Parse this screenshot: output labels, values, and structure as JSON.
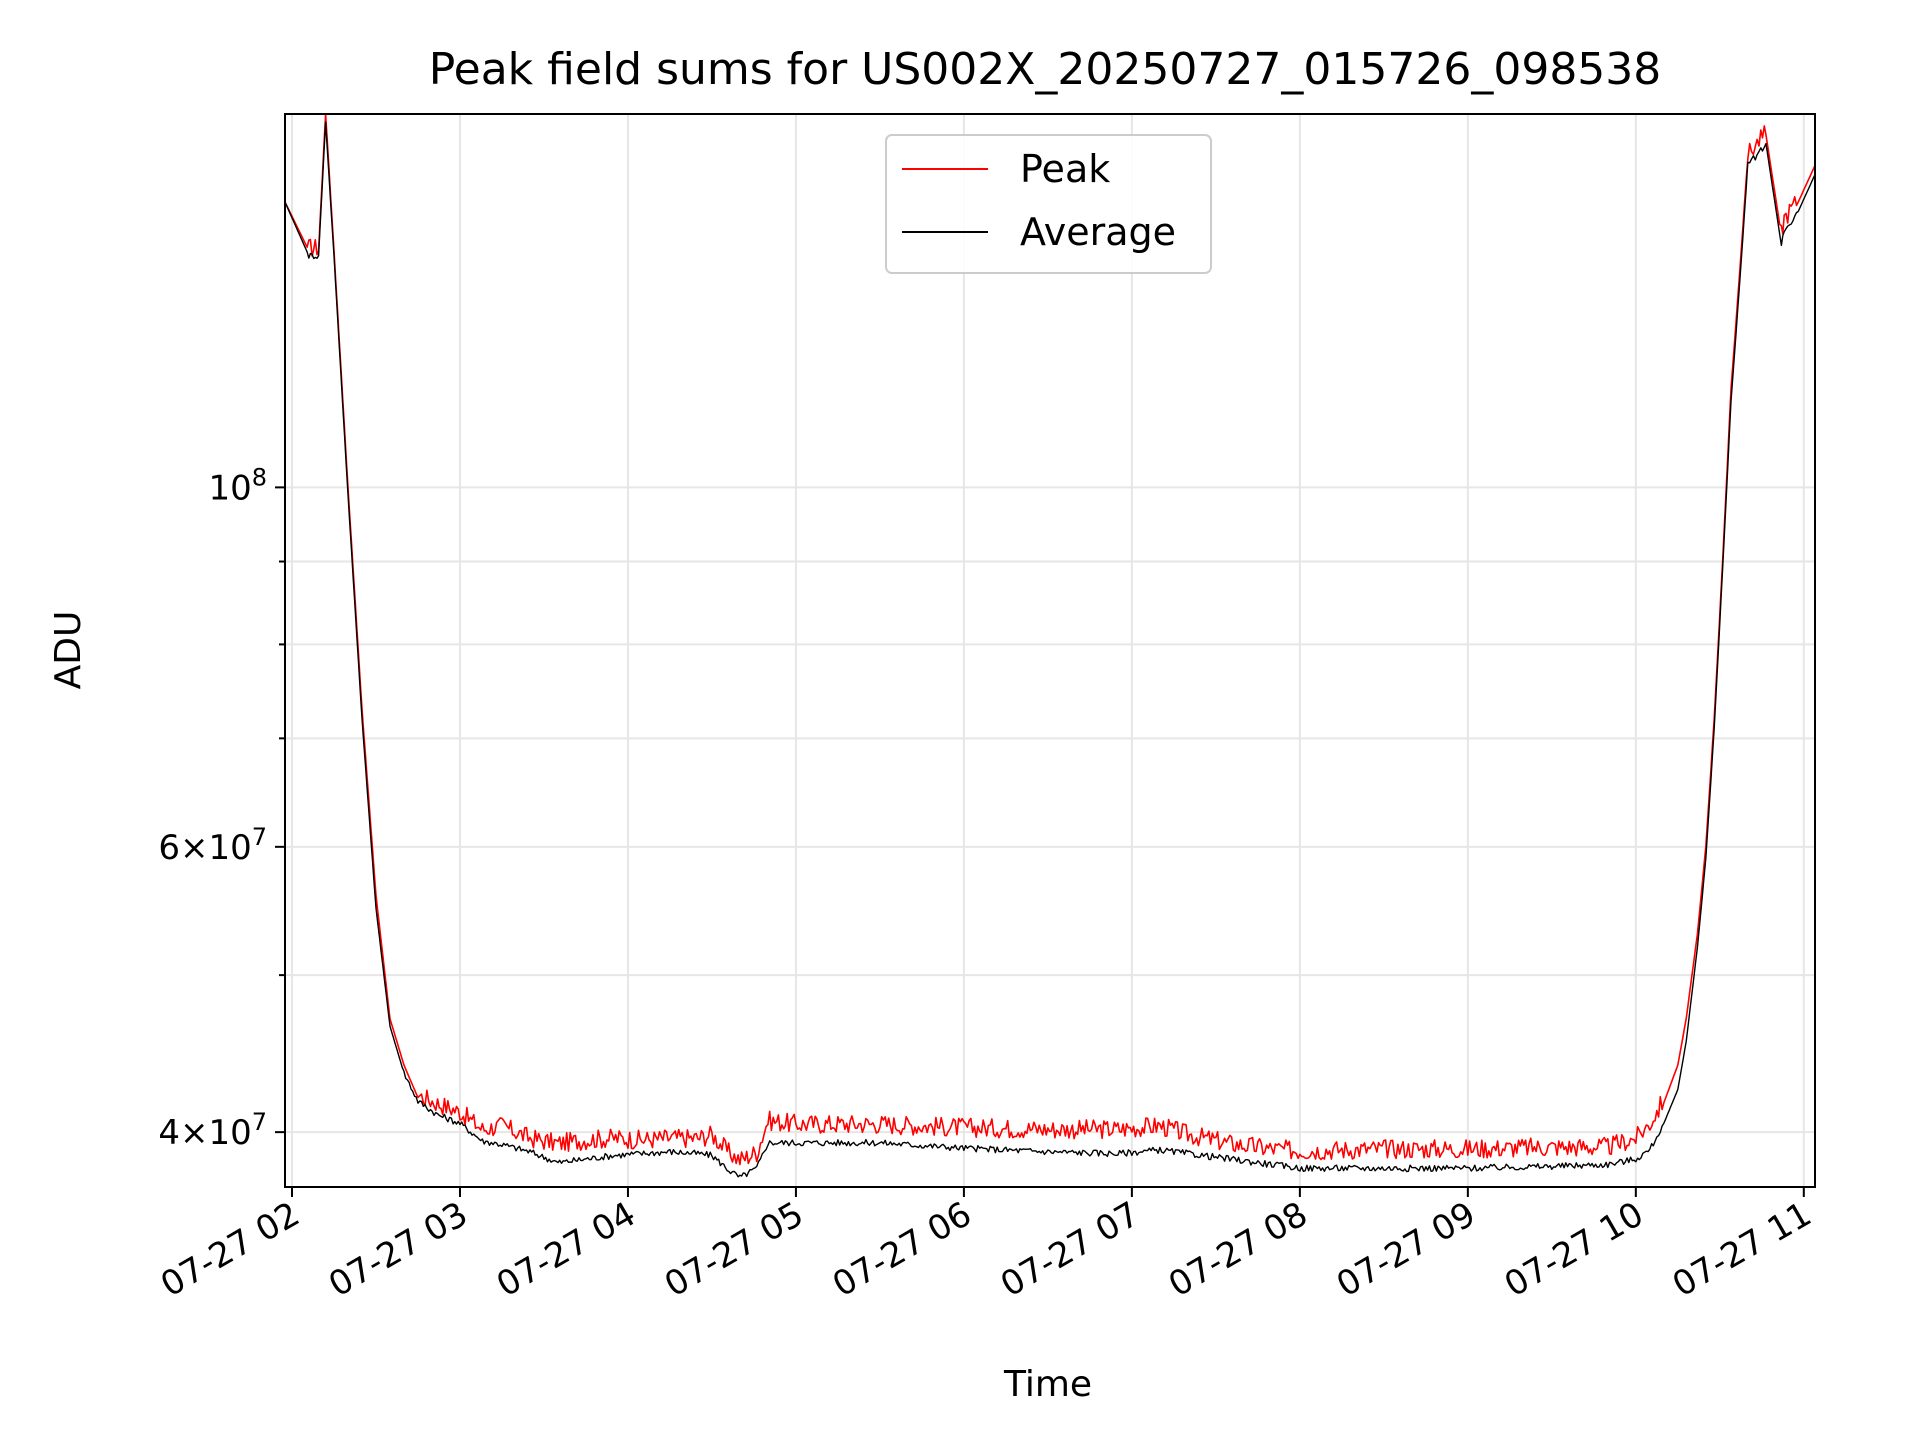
{
  "chart_data": {
    "type": "line",
    "title": "Peak field sums for US002X_20250727_015726_098538",
    "xlabel": "Time",
    "ylabel": "ADU",
    "x_scale": "time",
    "y_scale": "log",
    "xlim": [
      "07-27 01:57:30",
      "07-27 11:04:00"
    ],
    "ylim": [
      37000000,
      170000000
    ],
    "grid": true,
    "legend_position": "upper-center",
    "x_ticks": [
      {
        "value": "07-27 02:00",
        "label": "07-27 02"
      },
      {
        "value": "07-27 03:00",
        "label": "07-27 03"
      },
      {
        "value": "07-27 04:00",
        "label": "07-27 04"
      },
      {
        "value": "07-27 05:00",
        "label": "07-27 05"
      },
      {
        "value": "07-27 06:00",
        "label": "07-27 06"
      },
      {
        "value": "07-27 07:00",
        "label": "07-27 07"
      },
      {
        "value": "07-27 08:00",
        "label": "07-27 08"
      },
      {
        "value": "07-27 09:00",
        "label": "07-27 09"
      },
      {
        "value": "07-27 10:00",
        "label": "07-27 10"
      },
      {
        "value": "07-27 11:00",
        "label": "07-27 11"
      }
    ],
    "y_major_ticks": [
      {
        "value": 40000000,
        "mantissa": "4",
        "exponent": "7"
      },
      {
        "value": 60000000,
        "mantissa": "6",
        "exponent": "7"
      },
      {
        "value": 100000000,
        "mantissa": "",
        "exponent": "8"
      }
    ],
    "y_minor_ticks": [
      50000000,
      70000000,
      80000000,
      90000000
    ],
    "series": [
      {
        "name": "Peak",
        "color": "#ff0000",
        "x": [
          "07-27 01:57:30",
          "07-27 02:06:00",
          "07-27 02:09:30",
          "07-27 02:12:00",
          "07-27 02:15:00",
          "07-27 02:20:00",
          "07-27 02:25:00",
          "07-27 02:30:00",
          "07-27 02:35:00",
          "07-27 02:40:00",
          "07-27 02:45:00",
          "07-27 02:52:00",
          "07-27 03:00:00",
          "07-27 03:08:00",
          "07-27 03:15:00",
          "07-27 03:25:00",
          "07-27 03:35:00",
          "07-27 03:45:00",
          "07-27 03:55:00",
          "07-27 04:05:00",
          "07-27 04:15:00",
          "07-27 04:25:00",
          "07-27 04:30:00",
          "07-27 04:36:00",
          "07-27 04:40:00",
          "07-27 04:46:00",
          "07-27 04:50:00",
          "07-27 05:00:00",
          "07-27 05:30:00",
          "07-27 06:00:00",
          "07-27 06:30:00",
          "07-27 06:55:00",
          "07-27 07:10:00",
          "07-27 07:20:00",
          "07-27 07:35:00",
          "07-27 07:50:00",
          "07-27 08:00:00",
          "07-27 08:30:00",
          "07-27 09:00:00",
          "07-27 09:30:00",
          "07-27 09:50:00",
          "07-27 10:00:00",
          "07-27 10:05:00",
          "07-27 10:10:00",
          "07-27 10:15:00",
          "07-27 10:18:00",
          "07-27 10:22:00",
          "07-27 10:25:00",
          "07-27 10:28:00",
          "07-27 10:31:00",
          "07-27 10:34:00",
          "07-27 10:37:00",
          "07-27 10:40:00",
          "07-27 10:44:00",
          "07-27 10:46:30",
          "07-27 10:52:00",
          "07-27 10:53:00",
          "07-27 10:58:00",
          "07-27 11:04:00"
        ],
        "y": [
          150000000,
          140000000,
          140000000,
          170000000,
          140000000,
          100000000,
          73000000,
          56000000,
          47000000,
          44000000,
          42000000,
          41500000,
          41000000,
          40000000,
          40200000,
          39500000,
          39200000,
          39400000,
          39500000,
          39400000,
          39500000,
          39500000,
          39700000,
          38700000,
          38300000,
          38700000,
          40500000,
          40300000,
          40300000,
          40100000,
          40000000,
          40000000,
          40200000,
          39700000,
          39200000,
          38900000,
          38800000,
          38900000,
          38900000,
          39000000,
          39000000,
          39500000,
          40300000,
          41700000,
          44000000,
          47000000,
          53000000,
          60000000,
          72000000,
          90000000,
          115000000,
          135000000,
          160000000,
          163000000,
          165000000,
          143000000,
          146000000,
          150000000,
          158000000
        ]
      },
      {
        "name": "Average",
        "color": "#000000",
        "x": [
          "07-27 01:57:30",
          "07-27 02:06:00",
          "07-27 02:09:30",
          "07-27 02:12:00",
          "07-27 02:15:00",
          "07-27 02:20:00",
          "07-27 02:25:00",
          "07-27 02:30:00",
          "07-27 02:35:00",
          "07-27 02:40:00",
          "07-27 02:45:00",
          "07-27 02:52:00",
          "07-27 03:00:00",
          "07-27 03:08:00",
          "07-27 03:15:00",
          "07-27 03:25:00",
          "07-27 03:35:00",
          "07-27 03:45:00",
          "07-27 03:55:00",
          "07-27 04:05:00",
          "07-27 04:15:00",
          "07-27 04:25:00",
          "07-27 04:30:00",
          "07-27 04:36:00",
          "07-27 04:40:00",
          "07-27 04:46:00",
          "07-27 04:50:00",
          "07-27 05:00:00",
          "07-27 05:30:00",
          "07-27 06:00:00",
          "07-27 06:30:00",
          "07-27 06:55:00",
          "07-27 07:10:00",
          "07-27 07:20:00",
          "07-27 07:35:00",
          "07-27 07:50:00",
          "07-27 08:00:00",
          "07-27 08:30:00",
          "07-27 09:00:00",
          "07-27 09:30:00",
          "07-27 09:50:00",
          "07-27 10:00:00",
          "07-27 10:05:00",
          "07-27 10:10:00",
          "07-27 10:15:00",
          "07-27 10:18:00",
          "07-27 10:22:00",
          "07-27 10:25:00",
          "07-27 10:28:00",
          "07-27 10:31:00",
          "07-27 10:34:00",
          "07-27 10:37:00",
          "07-27 10:40:00",
          "07-27 10:44:00",
          "07-27 10:46:30",
          "07-27 10:52:00",
          "07-27 10:53:00",
          "07-27 10:58:00",
          "07-27 11:04:00"
        ],
        "y": [
          150000000,
          139000000,
          139000000,
          168000000,
          139000000,
          99000000,
          72000000,
          55000000,
          46500000,
          43500000,
          41800000,
          41000000,
          40500000,
          39500000,
          39300000,
          38900000,
          38300000,
          38500000,
          38700000,
          38800000,
          38900000,
          38800000,
          38700000,
          37900000,
          37500000,
          38000000,
          39400000,
          39400000,
          39400000,
          39100000,
          38900000,
          38800000,
          39000000,
          38800000,
          38500000,
          38200000,
          38000000,
          38000000,
          38000000,
          38100000,
          38200000,
          38500000,
          39000000,
          40500000,
          42500000,
          45500000,
          52000000,
          59000000,
          71000000,
          89000000,
          113000000,
          133000000,
          158000000,
          161000000,
          163000000,
          141000000,
          144000000,
          148000000,
          156000000
        ]
      }
    ]
  }
}
